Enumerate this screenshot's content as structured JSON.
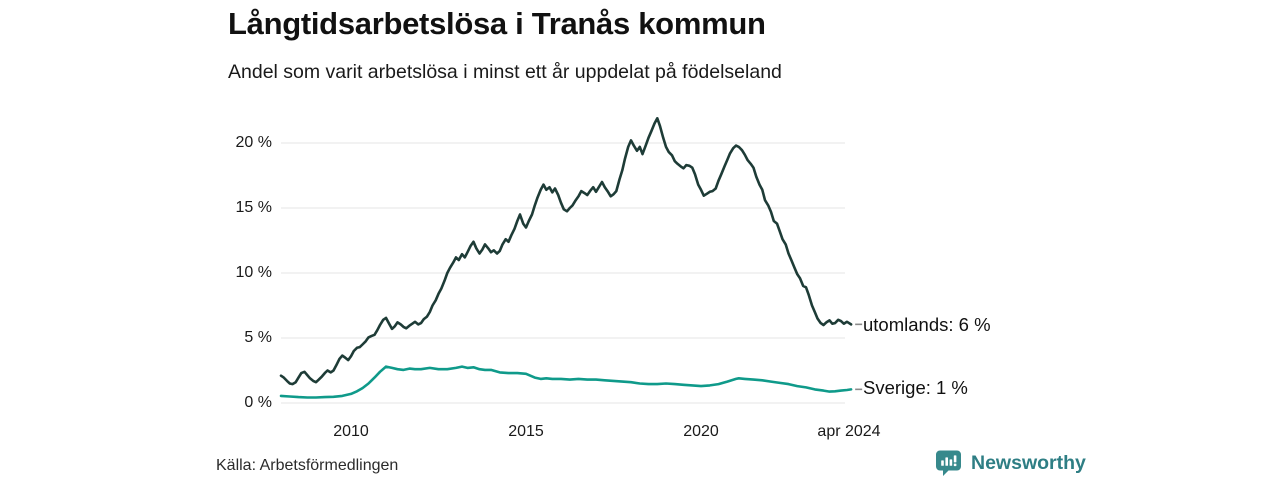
{
  "chart_data": {
    "type": "line",
    "title": "Långtidsarbetslösa i Tranås kommun",
    "subtitle": "Andel som varit arbetslösa i minst ett år uppdelat på födelseland",
    "grid": "horizontal",
    "legend_position": "end-of-line-labels",
    "x_axis": {
      "label": "",
      "range": [
        2008.0,
        2024.33
      ],
      "ticks": [
        {
          "value": 2010,
          "label": "2010"
        },
        {
          "value": 2015,
          "label": "2015"
        },
        {
          "value": 2020,
          "label": "2020"
        },
        {
          "value": 2024.29,
          "label": "apr 2024"
        }
      ]
    },
    "y_axis": {
      "label": "",
      "unit": "%",
      "range": [
        0,
        22.5
      ],
      "ticks": [
        {
          "value": 20,
          "label": "20 %"
        },
        {
          "value": 15,
          "label": "15 %"
        },
        {
          "value": 10,
          "label": "10 %"
        },
        {
          "value": 5,
          "label": "5 %"
        },
        {
          "value": 0,
          "label": "0 %"
        }
      ]
    },
    "series": [
      {
        "name": "utomlands",
        "end_label": "utomlands: 6 %",
        "end_value_pct": 6,
        "color": "#1e3c37",
        "points": [
          [
            2008.0,
            2.1
          ],
          [
            2008.08,
            1.95
          ],
          [
            2008.17,
            1.7
          ],
          [
            2008.25,
            1.5
          ],
          [
            2008.33,
            1.45
          ],
          [
            2008.42,
            1.6
          ],
          [
            2008.5,
            1.95
          ],
          [
            2008.58,
            2.3
          ],
          [
            2008.67,
            2.4
          ],
          [
            2008.75,
            2.15
          ],
          [
            2008.83,
            1.9
          ],
          [
            2008.92,
            1.7
          ],
          [
            2009.0,
            1.6
          ],
          [
            2009.08,
            1.8
          ],
          [
            2009.17,
            2.05
          ],
          [
            2009.25,
            2.3
          ],
          [
            2009.33,
            2.5
          ],
          [
            2009.42,
            2.35
          ],
          [
            2009.5,
            2.5
          ],
          [
            2009.58,
            2.9
          ],
          [
            2009.67,
            3.4
          ],
          [
            2009.75,
            3.65
          ],
          [
            2009.83,
            3.5
          ],
          [
            2009.92,
            3.3
          ],
          [
            2010.0,
            3.6
          ],
          [
            2010.08,
            4.0
          ],
          [
            2010.17,
            4.25
          ],
          [
            2010.25,
            4.3
          ],
          [
            2010.33,
            4.5
          ],
          [
            2010.42,
            4.75
          ],
          [
            2010.5,
            5.05
          ],
          [
            2010.58,
            5.15
          ],
          [
            2010.67,
            5.25
          ],
          [
            2010.75,
            5.6
          ],
          [
            2010.83,
            6.0
          ],
          [
            2010.92,
            6.4
          ],
          [
            2011.0,
            6.55
          ],
          [
            2011.08,
            6.15
          ],
          [
            2011.17,
            5.7
          ],
          [
            2011.25,
            5.9
          ],
          [
            2011.33,
            6.2
          ],
          [
            2011.42,
            6.05
          ],
          [
            2011.5,
            5.85
          ],
          [
            2011.58,
            5.75
          ],
          [
            2011.67,
            5.95
          ],
          [
            2011.75,
            6.1
          ],
          [
            2011.83,
            6.25
          ],
          [
            2011.92,
            6.05
          ],
          [
            2012.0,
            6.15
          ],
          [
            2012.08,
            6.45
          ],
          [
            2012.17,
            6.65
          ],
          [
            2012.25,
            7.0
          ],
          [
            2012.33,
            7.5
          ],
          [
            2012.42,
            7.9
          ],
          [
            2012.5,
            8.4
          ],
          [
            2012.58,
            8.8
          ],
          [
            2012.67,
            9.4
          ],
          [
            2012.75,
            10.0
          ],
          [
            2012.83,
            10.4
          ],
          [
            2012.92,
            10.8
          ],
          [
            2013.0,
            11.2
          ],
          [
            2013.08,
            11.0
          ],
          [
            2013.17,
            11.45
          ],
          [
            2013.25,
            11.2
          ],
          [
            2013.33,
            11.6
          ],
          [
            2013.42,
            12.1
          ],
          [
            2013.5,
            12.4
          ],
          [
            2013.58,
            11.9
          ],
          [
            2013.67,
            11.5
          ],
          [
            2013.75,
            11.8
          ],
          [
            2013.83,
            12.2
          ],
          [
            2013.92,
            11.9
          ],
          [
            2014.0,
            11.6
          ],
          [
            2014.08,
            11.75
          ],
          [
            2014.17,
            11.5
          ],
          [
            2014.25,
            11.7
          ],
          [
            2014.33,
            12.2
          ],
          [
            2014.42,
            12.6
          ],
          [
            2014.5,
            12.4
          ],
          [
            2014.58,
            12.9
          ],
          [
            2014.67,
            13.4
          ],
          [
            2014.75,
            14.0
          ],
          [
            2014.83,
            14.5
          ],
          [
            2014.92,
            13.8
          ],
          [
            2015.0,
            13.5
          ],
          [
            2015.08,
            14.0
          ],
          [
            2015.17,
            14.5
          ],
          [
            2015.25,
            15.2
          ],
          [
            2015.33,
            15.8
          ],
          [
            2015.42,
            16.4
          ],
          [
            2015.5,
            16.8
          ],
          [
            2015.58,
            16.4
          ],
          [
            2015.67,
            16.6
          ],
          [
            2015.75,
            16.2
          ],
          [
            2015.83,
            16.5
          ],
          [
            2015.92,
            16.0
          ],
          [
            2016.0,
            15.4
          ],
          [
            2016.08,
            14.9
          ],
          [
            2016.17,
            14.75
          ],
          [
            2016.25,
            15.0
          ],
          [
            2016.33,
            15.2
          ],
          [
            2016.42,
            15.6
          ],
          [
            2016.5,
            15.9
          ],
          [
            2016.58,
            16.3
          ],
          [
            2016.67,
            16.15
          ],
          [
            2016.75,
            16.0
          ],
          [
            2016.83,
            16.3
          ],
          [
            2016.92,
            16.6
          ],
          [
            2017.0,
            16.25
          ],
          [
            2017.08,
            16.6
          ],
          [
            2017.17,
            17.0
          ],
          [
            2017.25,
            16.6
          ],
          [
            2017.33,
            16.3
          ],
          [
            2017.42,
            15.9
          ],
          [
            2017.5,
            16.05
          ],
          [
            2017.58,
            16.3
          ],
          [
            2017.67,
            17.2
          ],
          [
            2017.75,
            17.9
          ],
          [
            2017.83,
            18.8
          ],
          [
            2017.92,
            19.7
          ],
          [
            2018.0,
            20.2
          ],
          [
            2018.08,
            19.8
          ],
          [
            2018.17,
            19.4
          ],
          [
            2018.25,
            19.7
          ],
          [
            2018.33,
            19.15
          ],
          [
            2018.42,
            19.8
          ],
          [
            2018.5,
            20.4
          ],
          [
            2018.58,
            20.9
          ],
          [
            2018.67,
            21.5
          ],
          [
            2018.75,
            21.9
          ],
          [
            2018.83,
            21.3
          ],
          [
            2018.92,
            20.4
          ],
          [
            2019.0,
            19.7
          ],
          [
            2019.08,
            19.3
          ],
          [
            2019.17,
            19.05
          ],
          [
            2019.25,
            18.6
          ],
          [
            2019.33,
            18.4
          ],
          [
            2019.42,
            18.2
          ],
          [
            2019.5,
            18.05
          ],
          [
            2019.58,
            18.3
          ],
          [
            2019.67,
            18.25
          ],
          [
            2019.75,
            18.1
          ],
          [
            2019.83,
            17.6
          ],
          [
            2019.92,
            16.8
          ],
          [
            2020.0,
            16.4
          ],
          [
            2020.08,
            15.95
          ],
          [
            2020.17,
            16.1
          ],
          [
            2020.25,
            16.25
          ],
          [
            2020.33,
            16.3
          ],
          [
            2020.42,
            16.5
          ],
          [
            2020.5,
            17.1
          ],
          [
            2020.58,
            17.6
          ],
          [
            2020.67,
            18.2
          ],
          [
            2020.75,
            18.7
          ],
          [
            2020.83,
            19.2
          ],
          [
            2020.92,
            19.6
          ],
          [
            2021.0,
            19.8
          ],
          [
            2021.08,
            19.7
          ],
          [
            2021.17,
            19.45
          ],
          [
            2021.25,
            19.1
          ],
          [
            2021.33,
            18.7
          ],
          [
            2021.42,
            18.4
          ],
          [
            2021.5,
            18.1
          ],
          [
            2021.58,
            17.4
          ],
          [
            2021.67,
            16.8
          ],
          [
            2021.75,
            16.4
          ],
          [
            2021.83,
            15.6
          ],
          [
            2021.92,
            15.2
          ],
          [
            2022.0,
            14.7
          ],
          [
            2022.08,
            14.0
          ],
          [
            2022.17,
            13.8
          ],
          [
            2022.25,
            13.2
          ],
          [
            2022.33,
            12.6
          ],
          [
            2022.42,
            12.2
          ],
          [
            2022.5,
            11.5
          ],
          [
            2022.58,
            11.0
          ],
          [
            2022.67,
            10.4
          ],
          [
            2022.75,
            9.9
          ],
          [
            2022.83,
            9.6
          ],
          [
            2022.92,
            9.0
          ],
          [
            2023.0,
            8.9
          ],
          [
            2023.08,
            8.3
          ],
          [
            2023.17,
            7.5
          ],
          [
            2023.25,
            7.0
          ],
          [
            2023.33,
            6.5
          ],
          [
            2023.42,
            6.15
          ],
          [
            2023.5,
            6.0
          ],
          [
            2023.58,
            6.2
          ],
          [
            2023.67,
            6.35
          ],
          [
            2023.75,
            6.1
          ],
          [
            2023.83,
            6.15
          ],
          [
            2023.92,
            6.4
          ],
          [
            2024.0,
            6.3
          ],
          [
            2024.08,
            6.1
          ],
          [
            2024.17,
            6.25
          ],
          [
            2024.29,
            6.05
          ]
        ]
      },
      {
        "name": "Sverige",
        "end_label": "Sverige: 1 %",
        "end_value_pct": 1,
        "color": "#0f9a8a",
        "points": [
          [
            2008.0,
            0.55
          ],
          [
            2008.25,
            0.5
          ],
          [
            2008.5,
            0.45
          ],
          [
            2008.75,
            0.42
          ],
          [
            2009.0,
            0.42
          ],
          [
            2009.25,
            0.45
          ],
          [
            2009.5,
            0.48
          ],
          [
            2009.75,
            0.55
          ],
          [
            2010.0,
            0.7
          ],
          [
            2010.17,
            0.9
          ],
          [
            2010.33,
            1.15
          ],
          [
            2010.5,
            1.5
          ],
          [
            2010.67,
            1.95
          ],
          [
            2010.83,
            2.4
          ],
          [
            2011.0,
            2.8
          ],
          [
            2011.17,
            2.7
          ],
          [
            2011.33,
            2.6
          ],
          [
            2011.5,
            2.55
          ],
          [
            2011.67,
            2.65
          ],
          [
            2011.83,
            2.6
          ],
          [
            2012.0,
            2.6
          ],
          [
            2012.25,
            2.7
          ],
          [
            2012.5,
            2.6
          ],
          [
            2012.75,
            2.6
          ],
          [
            2013.0,
            2.7
          ],
          [
            2013.17,
            2.8
          ],
          [
            2013.33,
            2.7
          ],
          [
            2013.5,
            2.75
          ],
          [
            2013.67,
            2.6
          ],
          [
            2013.83,
            2.55
          ],
          [
            2014.0,
            2.55
          ],
          [
            2014.25,
            2.35
          ],
          [
            2014.5,
            2.3
          ],
          [
            2014.75,
            2.3
          ],
          [
            2015.0,
            2.25
          ],
          [
            2015.25,
            1.95
          ],
          [
            2015.42,
            1.85
          ],
          [
            2015.58,
            1.9
          ],
          [
            2015.75,
            1.85
          ],
          [
            2016.0,
            1.85
          ],
          [
            2016.25,
            1.8
          ],
          [
            2016.5,
            1.85
          ],
          [
            2016.75,
            1.8
          ],
          [
            2017.0,
            1.8
          ],
          [
            2017.25,
            1.75
          ],
          [
            2017.5,
            1.7
          ],
          [
            2017.75,
            1.65
          ],
          [
            2018.0,
            1.6
          ],
          [
            2018.25,
            1.5
          ],
          [
            2018.5,
            1.45
          ],
          [
            2018.75,
            1.45
          ],
          [
            2019.0,
            1.5
          ],
          [
            2019.25,
            1.45
          ],
          [
            2019.5,
            1.4
          ],
          [
            2019.75,
            1.35
          ],
          [
            2020.0,
            1.3
          ],
          [
            2020.25,
            1.35
          ],
          [
            2020.5,
            1.45
          ],
          [
            2020.75,
            1.65
          ],
          [
            2021.0,
            1.85
          ],
          [
            2021.08,
            1.9
          ],
          [
            2021.25,
            1.85
          ],
          [
            2021.5,
            1.8
          ],
          [
            2021.75,
            1.75
          ],
          [
            2022.0,
            1.65
          ],
          [
            2022.25,
            1.55
          ],
          [
            2022.5,
            1.45
          ],
          [
            2022.75,
            1.3
          ],
          [
            2023.0,
            1.2
          ],
          [
            2023.25,
            1.05
          ],
          [
            2023.5,
            0.95
          ],
          [
            2023.67,
            0.88
          ],
          [
            2023.83,
            0.9
          ],
          [
            2024.0,
            0.95
          ],
          [
            2024.17,
            1.0
          ],
          [
            2024.29,
            1.05
          ]
        ]
      }
    ]
  },
  "footer": {
    "source": "Källa: Arbetsförmedlingen",
    "brand": "Newsworthy"
  },
  "colors": {
    "series_utomlands": "#1e3c37",
    "series_sverige": "#0f9a8a",
    "grid": "#e4e4e4",
    "text": "#1a1a1a",
    "annotation_dash": "#8a8a8a",
    "brand_text": "#2e7e84",
    "logo_bubble": "#37898c"
  }
}
